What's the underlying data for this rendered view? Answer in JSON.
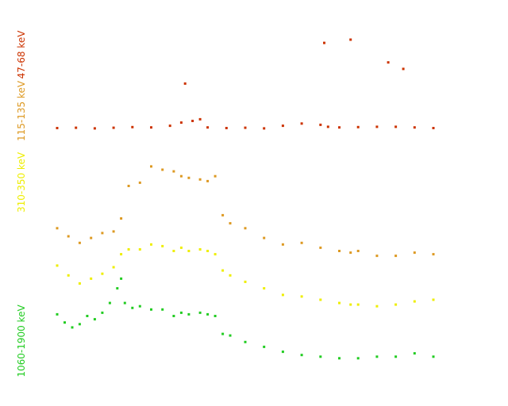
{
  "chart_data": {
    "type": "scatter",
    "title": "",
    "xlabel": "",
    "ylabel": "",
    "grid": false,
    "legend": "none",
    "x_range": [
      0,
      100
    ],
    "y_range": [
      0,
      100
    ],
    "series": [
      {
        "name": "47-68 keV",
        "color": "#cc3300",
        "points": [
          [
            0,
            72.8
          ],
          [
            5,
            72.9
          ],
          [
            10,
            72.7
          ],
          [
            15,
            72.9
          ],
          [
            20,
            73.1
          ],
          [
            25,
            73.0
          ],
          [
            30,
            73.5
          ],
          [
            33,
            74.5
          ],
          [
            34,
            86.5
          ],
          [
            36,
            75.0
          ],
          [
            38,
            75.5
          ],
          [
            40,
            73.0
          ],
          [
            45,
            72.8
          ],
          [
            50,
            72.9
          ],
          [
            55,
            72.7
          ],
          [
            60,
            73.5
          ],
          [
            65,
            74.2
          ],
          [
            70,
            73.8
          ],
          [
            71,
            99.0
          ],
          [
            72,
            73.2
          ],
          [
            75,
            73.0
          ],
          [
            78,
            100.0
          ],
          [
            80,
            73.1
          ],
          [
            85,
            73.2
          ],
          [
            88,
            93.0
          ],
          [
            90,
            73.2
          ],
          [
            92,
            91.0
          ],
          [
            95,
            73.0
          ],
          [
            100,
            72.8
          ]
        ]
      },
      {
        "name": "115-135 keV",
        "color": "#dd9922",
        "points": [
          [
            0,
            42.0
          ],
          [
            3,
            39.5
          ],
          [
            6,
            37.5
          ],
          [
            9,
            39.0
          ],
          [
            12,
            40.5
          ],
          [
            15,
            41.0
          ],
          [
            17,
            45.0
          ],
          [
            19,
            55.0
          ],
          [
            22,
            56.0
          ],
          [
            25,
            61.0
          ],
          [
            28,
            60.0
          ],
          [
            31,
            59.5
          ],
          [
            33,
            58.0
          ],
          [
            35,
            57.5
          ],
          [
            38,
            57.0
          ],
          [
            40,
            56.5
          ],
          [
            42,
            58.0
          ],
          [
            44,
            46.0
          ],
          [
            46,
            43.5
          ],
          [
            50,
            42.0
          ],
          [
            55,
            39.0
          ],
          [
            60,
            37.0
          ],
          [
            65,
            37.5
          ],
          [
            70,
            36.0
          ],
          [
            75,
            35.0
          ],
          [
            78,
            34.5
          ],
          [
            80,
            35.0
          ],
          [
            85,
            33.5
          ],
          [
            90,
            33.5
          ],
          [
            95,
            34.5
          ],
          [
            100,
            34.0
          ]
        ]
      },
      {
        "name": "310-350 keV",
        "color": "#eeee00",
        "points": [
          [
            0,
            30.5
          ],
          [
            3,
            27.5
          ],
          [
            6,
            25.0
          ],
          [
            9,
            26.5
          ],
          [
            12,
            28.0
          ],
          [
            15,
            30.0
          ],
          [
            17,
            34.0
          ],
          [
            19,
            35.5
          ],
          [
            22,
            35.5
          ],
          [
            25,
            37.0
          ],
          [
            28,
            36.5
          ],
          [
            31,
            35.0
          ],
          [
            33,
            36.0
          ],
          [
            35,
            35.0
          ],
          [
            38,
            35.5
          ],
          [
            40,
            35.0
          ],
          [
            42,
            34.0
          ],
          [
            44,
            29.0
          ],
          [
            46,
            27.5
          ],
          [
            50,
            25.5
          ],
          [
            55,
            23.5
          ],
          [
            60,
            21.5
          ],
          [
            65,
            21.0
          ],
          [
            70,
            20.0
          ],
          [
            75,
            19.0
          ],
          [
            78,
            18.5
          ],
          [
            80,
            18.5
          ],
          [
            85,
            18.0
          ],
          [
            90,
            18.5
          ],
          [
            95,
            19.5
          ],
          [
            100,
            20.0
          ]
        ]
      },
      {
        "name": "1060-1900 keV",
        "color": "#22cc22",
        "points": [
          [
            0,
            15.5
          ],
          [
            2,
            13.0
          ],
          [
            4,
            11.5
          ],
          [
            6,
            12.5
          ],
          [
            8,
            15.0
          ],
          [
            10,
            14.0
          ],
          [
            12,
            16.0
          ],
          [
            14,
            19.0
          ],
          [
            16,
            23.5
          ],
          [
            17,
            26.5
          ],
          [
            18,
            19.0
          ],
          [
            20,
            17.5
          ],
          [
            22,
            18.0
          ],
          [
            25,
            17.0
          ],
          [
            28,
            17.0
          ],
          [
            31,
            15.0
          ],
          [
            33,
            16.0
          ],
          [
            35,
            15.5
          ],
          [
            38,
            16.0
          ],
          [
            40,
            15.5
          ],
          [
            42,
            15.0
          ],
          [
            44,
            9.5
          ],
          [
            46,
            9.0
          ],
          [
            50,
            7.0
          ],
          [
            55,
            5.5
          ],
          [
            60,
            4.0
          ],
          [
            65,
            3.0
          ],
          [
            70,
            2.5
          ],
          [
            75,
            2.0
          ],
          [
            80,
            2.0
          ],
          [
            85,
            2.5
          ],
          [
            90,
            2.5
          ],
          [
            95,
            3.5
          ],
          [
            100,
            2.5
          ]
        ]
      }
    ]
  }
}
